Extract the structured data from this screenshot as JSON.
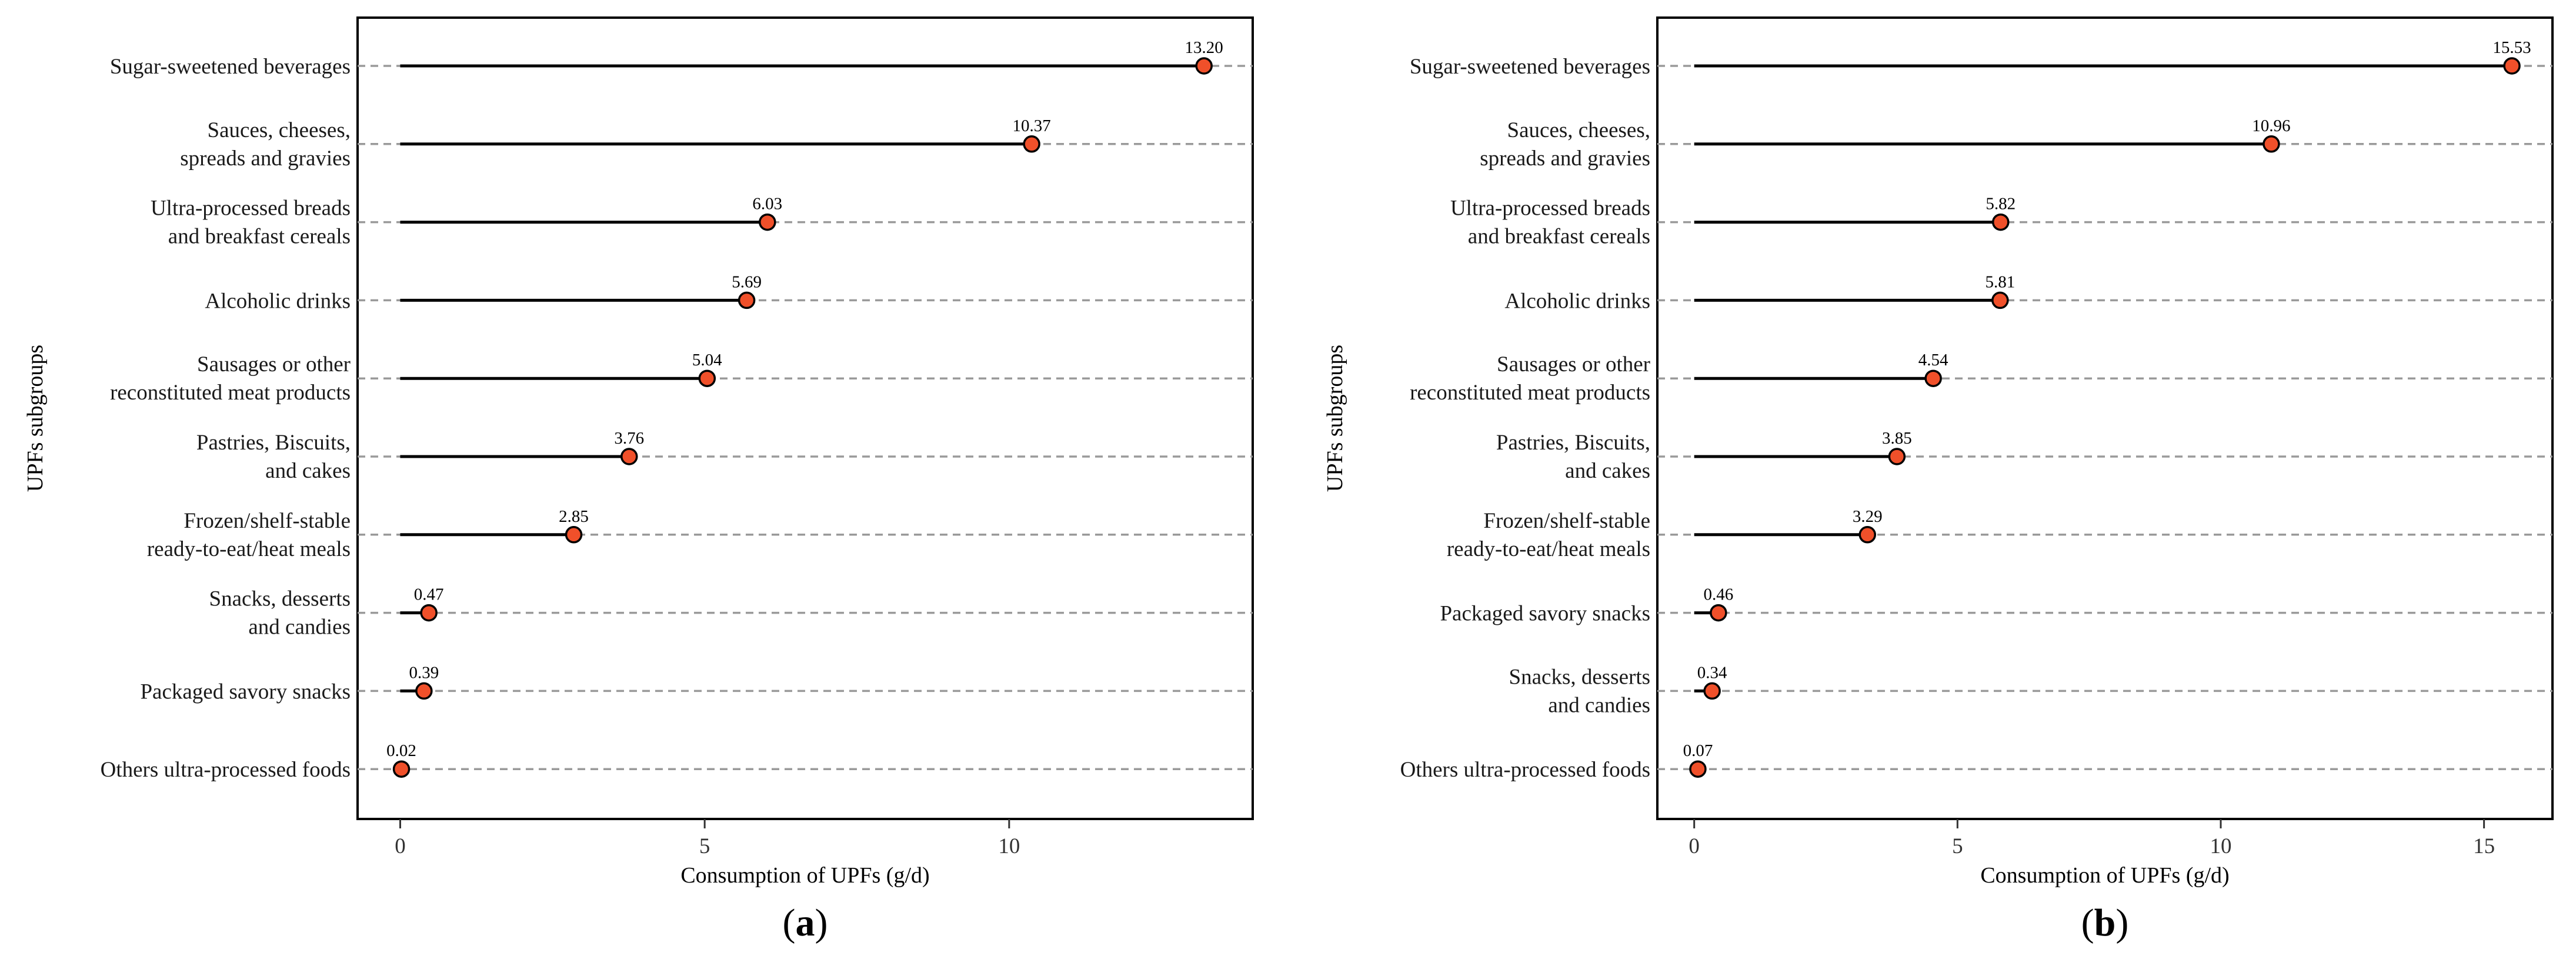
{
  "chart_data": [
    {
      "type": "lollipop",
      "panel_label": "a",
      "xlabel": "Consumption of UPFs (g/d)",
      "ylabel": "UPFs subgroups",
      "xlim": [
        -0.7,
        14.0
      ],
      "xticks": [
        0,
        5,
        10
      ],
      "grid": "dashed horizontal at each category",
      "categories": [
        "Sugar-sweetened beverages",
        "Sauces, cheeses,\nspreads and gravies",
        "Ultra-processed breads\nand breakfast cereals",
        "Alcoholic drinks",
        "Sausages or other\nreconstituted meat products",
        "Pastries, Biscuits,\nand cakes",
        "Frozen/shelf-stable\nready-to-eat/heat meals",
        "Snacks, desserts\nand candies",
        "Packaged savory snacks",
        "Others ultra-processed foods"
      ],
      "values": [
        13.2,
        10.37,
        6.03,
        5.69,
        5.04,
        3.76,
        2.85,
        0.47,
        0.39,
        0.02
      ],
      "value_labels": [
        "13.20",
        "10.37",
        "6.03",
        "5.69",
        "5.04",
        "3.76",
        "2.85",
        "0.47",
        "0.39",
        "0.02"
      ],
      "point_color": "#f0502a"
    },
    {
      "type": "lollipop",
      "panel_label": "b",
      "xlabel": "Consumption of UPFs (g/d)",
      "ylabel": "UPFs subgroups",
      "xlim": [
        -0.7,
        16.3
      ],
      "xticks": [
        0,
        5,
        10,
        15
      ],
      "grid": "dashed horizontal at each category",
      "categories": [
        "Sugar-sweetened beverages",
        "Sauces, cheeses,\nspreads and gravies",
        "Ultra-processed breads\nand breakfast cereals",
        "Alcoholic drinks",
        "Sausages or other\nreconstituted meat products",
        "Pastries, Biscuits,\nand cakes",
        "Frozen/shelf-stable\nready-to-eat/heat meals",
        "Packaged savory snacks",
        "Snacks, desserts\nand candies",
        "Others ultra-processed foods"
      ],
      "values": [
        15.53,
        10.96,
        5.82,
        5.81,
        4.54,
        3.85,
        3.29,
        0.46,
        0.34,
        0.07
      ],
      "value_labels": [
        "15.53",
        "10.96",
        "5.82",
        "5.81",
        "4.54",
        "3.85",
        "3.29",
        "0.46",
        "0.34",
        "0.07"
      ],
      "point_color": "#f0502a"
    }
  ]
}
